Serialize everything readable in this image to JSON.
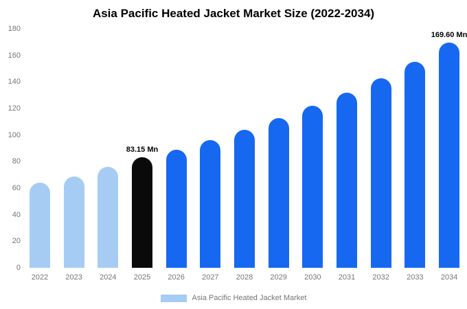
{
  "chart_data": {
    "type": "bar",
    "title": "Asia Pacific Heated Jacket Market Size (2022-2034)",
    "categories": [
      "2022",
      "2023",
      "2024",
      "2025",
      "2026",
      "2027",
      "2028",
      "2029",
      "2030",
      "2031",
      "2032",
      "2033",
      "2034"
    ],
    "values": [
      64,
      69,
      76,
      83.15,
      89,
      96,
      104,
      113,
      122,
      132,
      143,
      155,
      169.6
    ],
    "unit": "Mn",
    "xlabel": "",
    "ylabel": "",
    "ylim": [
      0,
      180
    ],
    "yticks": [
      0,
      20,
      40,
      60,
      80,
      100,
      120,
      140,
      160,
      180
    ],
    "grid": false,
    "legend_position": "bottom",
    "bar_colors": [
      "#a6ccf3",
      "#a6ccf3",
      "#a6ccf3",
      "#0a0a0a",
      "#1668f0",
      "#1668f0",
      "#1668f0",
      "#1668f0",
      "#1668f0",
      "#1668f0",
      "#1668f0",
      "#1668f0",
      "#1668f0"
    ],
    "palette": {
      "light_blue": "#a6ccf3",
      "blue": "#1668f0",
      "black": "#0a0a0a",
      "axis_text": "#757575",
      "background": "#ffffff"
    },
    "annotations": [
      {
        "category": "2025",
        "text": "83.15 Mn"
      },
      {
        "category": "2034",
        "text": "169.60 Mn"
      }
    ],
    "legend": [
      {
        "label": "Asia Pacific Heated Jacket Market",
        "color": "#a6ccf3"
      }
    ]
  }
}
